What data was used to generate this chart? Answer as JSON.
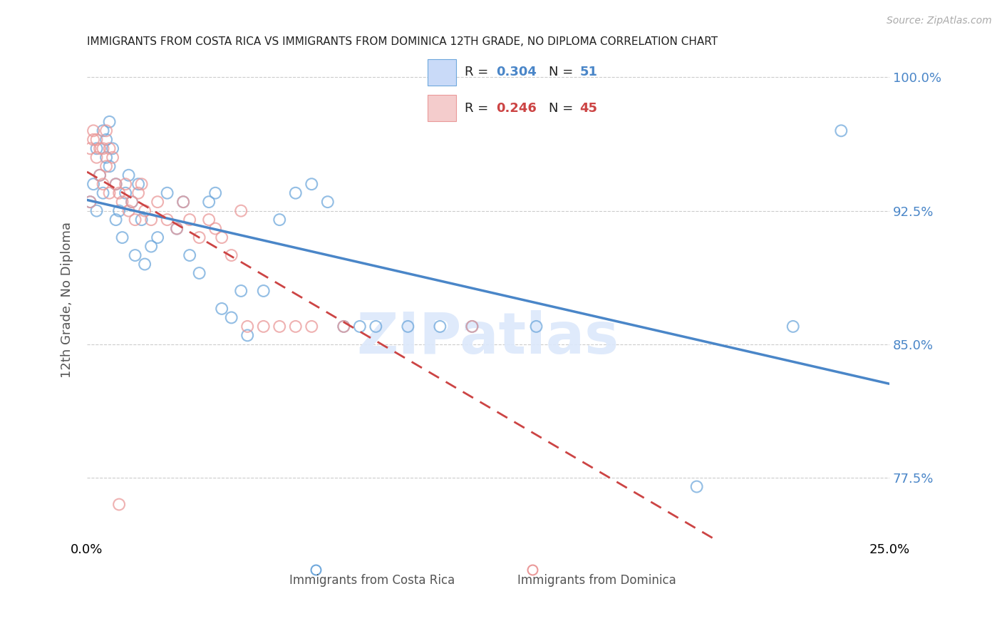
{
  "title": "IMMIGRANTS FROM COSTA RICA VS IMMIGRANTS FROM DOMINICA 12TH GRADE, NO DIPLOMA CORRELATION CHART",
  "source": "Source: ZipAtlas.com",
  "ylabel": "12th Grade, No Diploma",
  "legend_label1": "Immigrants from Costa Rica",
  "legend_label2": "Immigrants from Dominica",
  "R1": 0.304,
  "N1": 51,
  "R2": 0.246,
  "N2": 45,
  "xlim": [
    0.0,
    0.25
  ],
  "ylim": [
    0.74,
    1.01
  ],
  "yticks": [
    0.775,
    0.85,
    0.925,
    1.0
  ],
  "ytick_labels": [
    "77.5%",
    "85.0%",
    "92.5%",
    "100.0%"
  ],
  "xtick_labels": [
    "0.0%",
    "25.0%"
  ],
  "color_blue": "#6fa8dc",
  "color_pink": "#ea9999",
  "color_blue_line": "#4a86c8",
  "color_pink_line": "#cc4444",
  "color_blue_text": "#4a86c8",
  "color_pink_text": "#cc4444",
  "background": "#ffffff",
  "costa_rica_x": [
    0.001,
    0.002,
    0.003,
    0.003,
    0.004,
    0.005,
    0.005,
    0.006,
    0.006,
    0.007,
    0.007,
    0.008,
    0.009,
    0.009,
    0.01,
    0.011,
    0.012,
    0.013,
    0.014,
    0.015,
    0.016,
    0.017,
    0.018,
    0.02,
    0.022,
    0.025,
    0.028,
    0.03,
    0.032,
    0.035,
    0.038,
    0.04,
    0.042,
    0.045,
    0.048,
    0.05,
    0.055,
    0.06,
    0.065,
    0.07,
    0.075,
    0.08,
    0.085,
    0.09,
    0.1,
    0.11,
    0.12,
    0.14,
    0.19,
    0.22,
    0.235
  ],
  "costa_rica_y": [
    0.93,
    0.94,
    0.925,
    0.96,
    0.945,
    0.935,
    0.97,
    0.955,
    0.965,
    0.95,
    0.975,
    0.96,
    0.92,
    0.94,
    0.925,
    0.91,
    0.935,
    0.945,
    0.93,
    0.9,
    0.94,
    0.92,
    0.895,
    0.905,
    0.91,
    0.935,
    0.915,
    0.93,
    0.9,
    0.89,
    0.93,
    0.935,
    0.87,
    0.865,
    0.88,
    0.855,
    0.88,
    0.92,
    0.935,
    0.94,
    0.93,
    0.86,
    0.86,
    0.86,
    0.86,
    0.86,
    0.86,
    0.86,
    0.77,
    0.86,
    0.97
  ],
  "dominica_x": [
    0.001,
    0.001,
    0.002,
    0.002,
    0.003,
    0.003,
    0.004,
    0.004,
    0.005,
    0.005,
    0.006,
    0.006,
    0.007,
    0.007,
    0.008,
    0.009,
    0.01,
    0.011,
    0.012,
    0.013,
    0.014,
    0.015,
    0.016,
    0.017,
    0.018,
    0.02,
    0.022,
    0.025,
    0.028,
    0.03,
    0.032,
    0.035,
    0.038,
    0.04,
    0.042,
    0.045,
    0.048,
    0.05,
    0.055,
    0.06,
    0.065,
    0.07,
    0.08,
    0.12,
    0.01
  ],
  "dominica_y": [
    0.93,
    0.96,
    0.965,
    0.97,
    0.965,
    0.955,
    0.96,
    0.945,
    0.96,
    0.94,
    0.97,
    0.95,
    0.96,
    0.935,
    0.955,
    0.94,
    0.935,
    0.93,
    0.94,
    0.925,
    0.93,
    0.92,
    0.935,
    0.94,
    0.925,
    0.92,
    0.93,
    0.92,
    0.915,
    0.93,
    0.92,
    0.91,
    0.92,
    0.915,
    0.91,
    0.9,
    0.925,
    0.86,
    0.86,
    0.86,
    0.86,
    0.86,
    0.86,
    0.86,
    0.76
  ]
}
